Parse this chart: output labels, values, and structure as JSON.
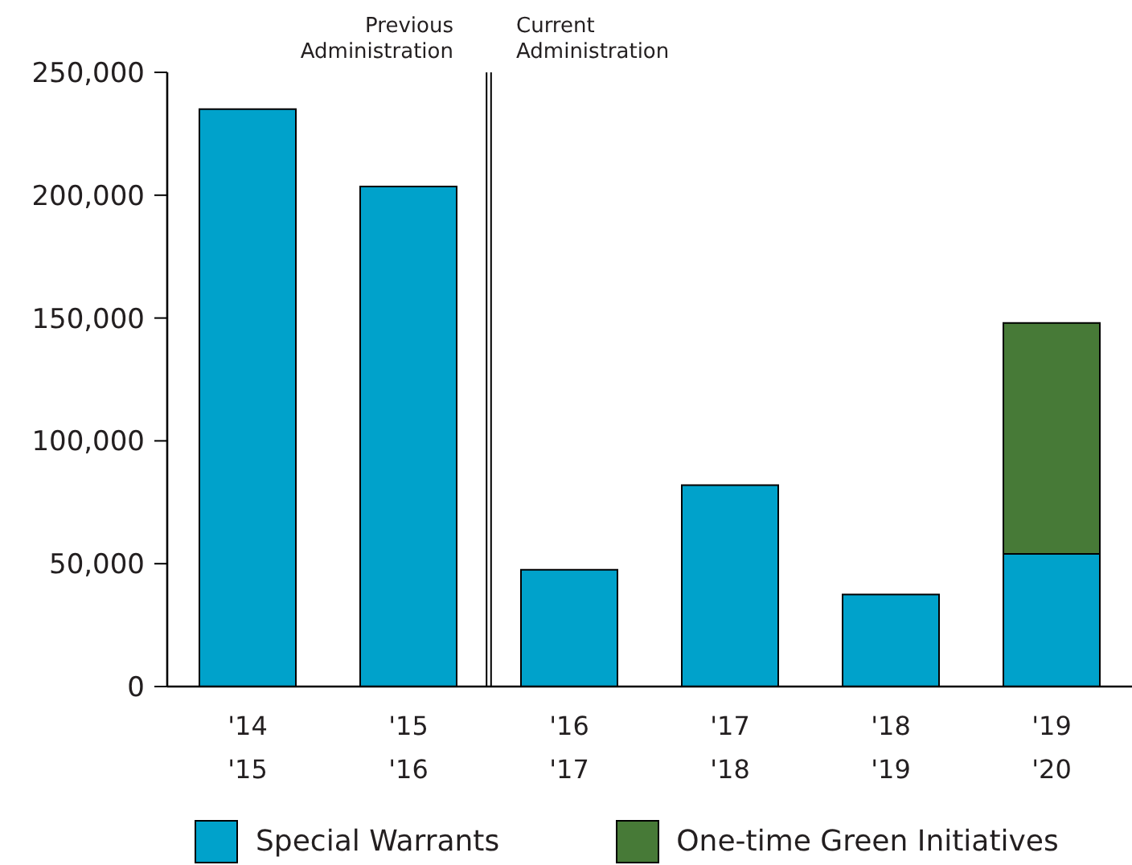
{
  "chart_data": {
    "type": "bar",
    "categories": [
      "'14\n'15",
      "'15\n'16",
      "'16\n'17",
      "'17\n'18",
      "'18\n'19",
      "'19\n'20"
    ],
    "series": [
      {
        "name": "Special Warrants",
        "color": "#00a2cb",
        "values": [
          235000,
          203500,
          47500,
          82000,
          37500,
          54000
        ]
      },
      {
        "name": "One-time Green Initiatives",
        "color": "#477a37",
        "values": [
          null,
          null,
          null,
          null,
          null,
          94000
        ]
      }
    ],
    "stacked": true,
    "ylim": [
      0,
      250000
    ],
    "yticks": [
      0,
      {
        "value": 50000,
        "label": "50,000"
      },
      {
        "value": 100000,
        "label": "100,000"
      },
      {
        "value": 150000,
        "label": "150,000"
      },
      {
        "value": 200000,
        "label": "200,000"
      },
      {
        "value": 250000,
        "label": "250,000"
      }
    ],
    "legend": "bottom",
    "annotations": [
      "Previous Administration",
      "Current Administration"
    ]
  }
}
